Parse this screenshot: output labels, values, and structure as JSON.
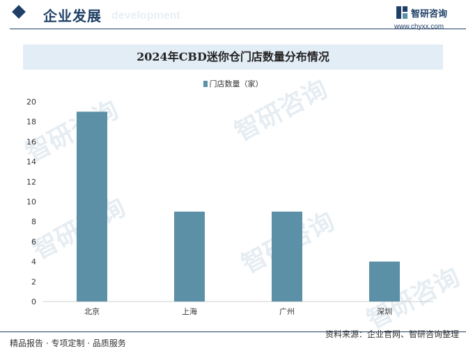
{
  "header": {
    "title": "企业发展",
    "ghost_text": "development",
    "logo_name": "智研咨询",
    "logo_url": "www.chyxx.com"
  },
  "watermark_text": "智研咨询",
  "chart_data": {
    "type": "bar",
    "title": "2024年CBD迷你仓门店数量分布情况",
    "categories": [
      "北京",
      "上海",
      "广州",
      "深圳"
    ],
    "series": [
      {
        "name": "门店数量（家）",
        "values": [
          19,
          9,
          9,
          4
        ]
      }
    ],
    "ylim": [
      0,
      20
    ],
    "yticks": [
      0,
      2,
      4,
      6,
      8,
      10,
      12,
      14,
      16,
      18,
      20
    ],
    "xlabel": "",
    "ylabel": "",
    "legend_position": "top-center",
    "grid": false,
    "bar_color": "#5b90a6"
  },
  "footer": {
    "left": "精品报告 · 专项定制 · 品质服务",
    "right": "资料来源：企业官网、智研咨询整理"
  },
  "colors": {
    "brand": "#1f3f66",
    "title_band": "#e3edf6",
    "bar": "#5b90a6"
  }
}
